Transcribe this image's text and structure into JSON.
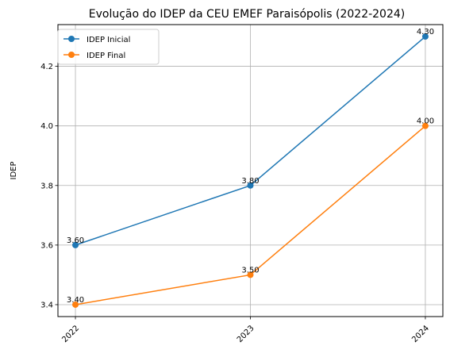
{
  "chart_data": {
    "type": "line",
    "title": "Evolução do IDEP da CEU EMEF Paraisópolis (2022-2024)",
    "xlabel": "",
    "ylabel": "IDEP",
    "categories": [
      "2022",
      "2023",
      "2024"
    ],
    "ylim": [
      3.36,
      4.34
    ],
    "yticks": [
      3.4,
      3.6,
      3.8,
      4.0,
      4.2
    ],
    "ytick_labels": [
      "3.4",
      "3.6",
      "3.8",
      "4.0",
      "4.2"
    ],
    "grid": true,
    "legend_position": "upper-left",
    "series": [
      {
        "name": "IDEP Inicial",
        "color": "#1f77b4",
        "values": [
          3.6,
          3.8,
          4.3
        ],
        "labels": [
          "3.60",
          "3.80",
          "4.30"
        ]
      },
      {
        "name": "IDEP Final",
        "color": "#ff7f0e",
        "values": [
          3.4,
          3.5,
          4.0
        ],
        "labels": [
          "3.40",
          "3.50",
          "4.00"
        ]
      }
    ]
  }
}
